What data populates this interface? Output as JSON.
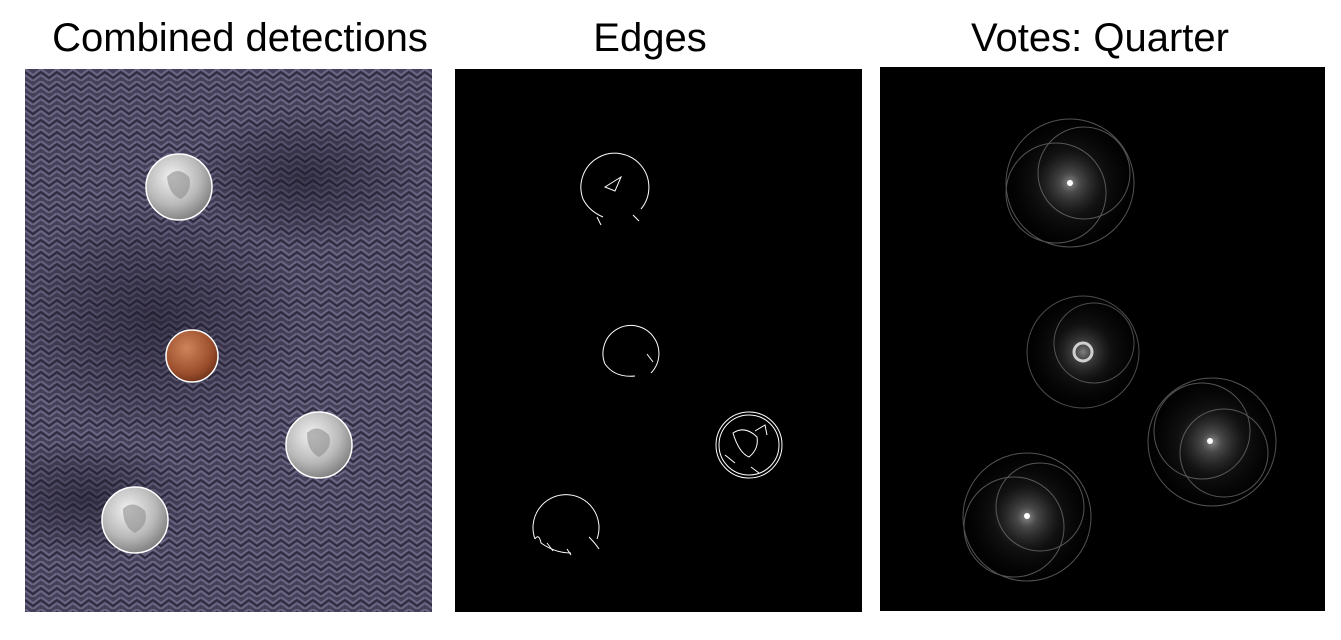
{
  "panels": [
    {
      "title": "Combined detections",
      "image": "photo of coins on herringbone fabric with detected circles"
    },
    {
      "title": "Edges",
      "image": "edge map of coins"
    },
    {
      "title": "Votes: Quarter",
      "image": "hough accumulator votes"
    }
  ]
}
